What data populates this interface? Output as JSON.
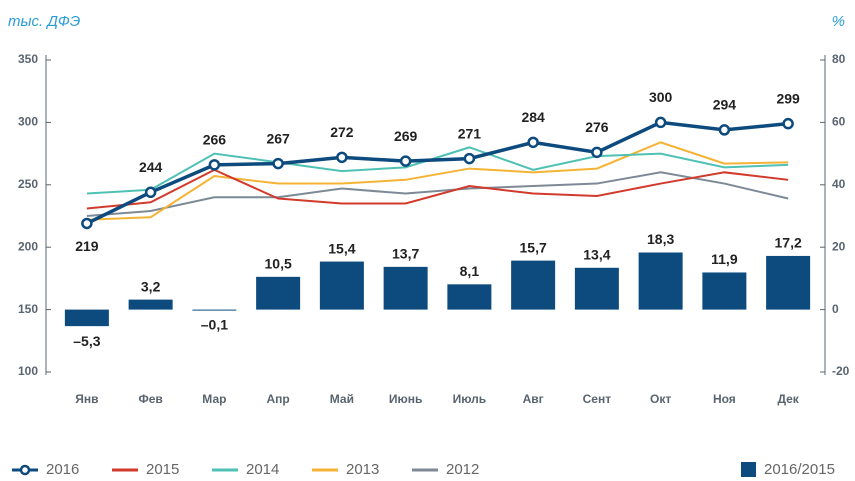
{
  "chart_data": {
    "type": "line",
    "y_label": "тыс. ДФЭ",
    "y2_label": "%",
    "categories": [
      "Янв",
      "Фев",
      "Мар",
      "Апр",
      "Май",
      "Июнь",
      "Июль",
      "Авг",
      "Сент",
      "Окт",
      "Ноя",
      "Дек"
    ],
    "ylim": [
      100,
      350
    ],
    "yticks": [
      100,
      150,
      200,
      250,
      300,
      350
    ],
    "y2lim": [
      -20,
      80
    ],
    "y2ticks": [
      -20,
      0,
      20,
      40,
      60,
      80
    ],
    "grid": false,
    "legend": "bottom",
    "series": [
      {
        "name": "2016/2015",
        "type": "bar",
        "axis": "y2",
        "color": "#0d4a7e",
        "values": [
          -5.3,
          3.2,
          -0.1,
          10.5,
          15.4,
          13.7,
          8.1,
          15.7,
          13.4,
          18.3,
          11.9,
          17.2
        ],
        "value_labels": [
          "–5,3",
          "3,2",
          "–0,1",
          "10,5",
          "15,4",
          "13,7",
          "8,1",
          "15,7",
          "13,4",
          "18,3",
          "11,9",
          "17,2"
        ]
      },
      {
        "name": "2012",
        "type": "line",
        "color": "#7d8a96",
        "values": [
          225,
          229,
          240,
          240,
          247,
          243,
          247,
          249,
          251,
          260,
          251,
          239
        ]
      },
      {
        "name": "2013",
        "type": "line",
        "color": "#f5b335",
        "values": [
          222,
          224,
          257,
          251,
          251,
          254,
          263,
          260,
          263,
          284,
          267,
          268
        ]
      },
      {
        "name": "2014",
        "type": "line",
        "color": "#4fc1b4",
        "values": [
          243,
          246,
          275,
          268,
          261,
          264,
          280,
          262,
          273,
          275,
          264,
          266
        ]
      },
      {
        "name": "2015",
        "type": "line",
        "color": "#d23a2c",
        "values": [
          231,
          236,
          262,
          239,
          235,
          235,
          249,
          243,
          241,
          251,
          260,
          254
        ]
      },
      {
        "name": "2016",
        "type": "line",
        "color": "#0d4a7e",
        "markers": true,
        "labels": true,
        "values": [
          219,
          244,
          266,
          267,
          272,
          269,
          271,
          284,
          276,
          300,
          294,
          299
        ]
      }
    ]
  }
}
